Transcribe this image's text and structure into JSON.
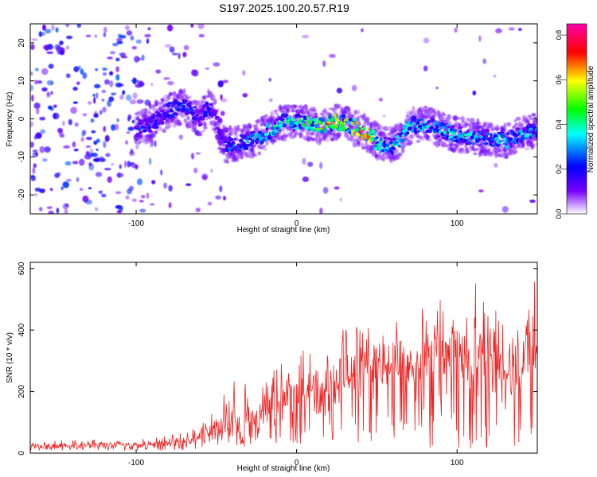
{
  "figure_title": "S197.2025.100.20.57.R19",
  "chart_data": [
    {
      "type": "heatmap",
      "title": "S197.2025.100.20.57.R19",
      "xlabel": "Height of straight line (km)",
      "ylabel": "Frequency (Hz)",
      "xlim": [
        -166,
        150
      ],
      "ylim": [
        -25,
        25
      ],
      "x_ticks": [
        -100,
        0,
        100
      ],
      "y_ticks": [
        -20,
        -10,
        0,
        10,
        20
      ],
      "colorbar": {
        "label": "Normalized spectral amplitude",
        "range": [
          0,
          0.85
        ],
        "ticks": [
          "0.0",
          "0.2",
          "0.4",
          "0.6",
          "0.8"
        ],
        "colormap": [
          "#ffffff",
          "#7700ff",
          "#0000ff",
          "#00ffff",
          "#00ff00",
          "#ffff00",
          "#ff0000",
          "#ff00aa"
        ]
      },
      "ridge": {
        "x": [
          -100,
          -90,
          -80,
          -75,
          -70,
          -65,
          -60,
          -55,
          -50,
          -45,
          -40,
          -30,
          -20,
          -10,
          0,
          10,
          15,
          20,
          30,
          40,
          45,
          50,
          55,
          60,
          65,
          70,
          80,
          90,
          100,
          110,
          120,
          130,
          140,
          150
        ],
        "y": [
          -3,
          -1,
          2,
          3,
          3,
          2,
          0,
          3,
          0,
          -7,
          -7,
          -6,
          -4,
          -1,
          -1,
          -1,
          -2,
          -1,
          -1,
          -3,
          -4,
          -6,
          -7,
          -7,
          -5,
          -2,
          -1,
          -3,
          -4,
          -5,
          -5,
          -6,
          -4,
          -3
        ],
        "peak_amplitude": [
          0.25,
          0.3,
          0.35,
          0.35,
          0.3,
          0.3,
          0.25,
          0.3,
          0.2,
          0.3,
          0.35,
          0.4,
          0.45,
          0.5,
          0.5,
          0.55,
          0.75,
          0.75,
          0.6,
          0.8,
          0.75,
          0.5,
          0.45,
          0.45,
          0.4,
          0.45,
          0.45,
          0.45,
          0.45,
          0.45,
          0.4,
          0.45,
          0.4,
          0.4
        ]
      }
    },
    {
      "type": "line",
      "xlabel": "Height of straight line (km)",
      "ylabel": "SNR (10 * v/v)",
      "xlim": [
        -166,
        150
      ],
      "ylim": [
        0,
        620
      ],
      "x_ticks": [
        -100,
        0,
        100
      ],
      "y_ticks": [
        0,
        200,
        400,
        600
      ],
      "color": "#ee2222",
      "envelope": {
        "x": [
          -166,
          -150,
          -130,
          -110,
          -100,
          -90,
          -80,
          -70,
          -60,
          -55,
          -50,
          -45,
          -40,
          -35,
          -32,
          -28,
          -20,
          -10,
          0,
          10,
          20,
          30,
          40,
          50,
          60,
          70,
          80,
          90,
          100,
          110,
          120,
          130,
          140,
          150
        ],
        "low": [
          8,
          8,
          8,
          8,
          8,
          8,
          10,
          10,
          12,
          15,
          15,
          20,
          15,
          10,
          15,
          20,
          25,
          30,
          30,
          35,
          40,
          35,
          30,
          20,
          20,
          15,
          10,
          10,
          10,
          10,
          15,
          20,
          15,
          20
        ],
        "high": [
          40,
          40,
          45,
          45,
          45,
          55,
          60,
          70,
          90,
          120,
          150,
          200,
          270,
          100,
          420,
          170,
          260,
          300,
          340,
          330,
          350,
          410,
          420,
          440,
          500,
          460,
          480,
          500,
          520,
          620,
          470,
          480,
          480,
          620
        ],
        "typical": [
          20,
          20,
          22,
          22,
          24,
          25,
          28,
          30,
          40,
          50,
          60,
          80,
          80,
          40,
          100,
          80,
          110,
          130,
          160,
          170,
          190,
          200,
          220,
          230,
          240,
          230,
          220,
          250,
          260,
          250,
          230,
          230,
          220,
          240
        ]
      }
    }
  ]
}
